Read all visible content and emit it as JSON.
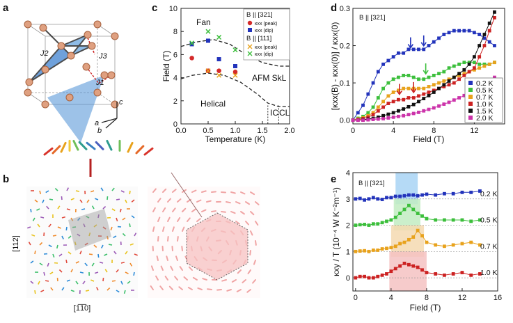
{
  "panels": {
    "a": {
      "label": "a",
      "bonds": [
        "J2",
        "J3",
        "J1"
      ],
      "axes": [
        "c",
        "a",
        "b"
      ]
    },
    "b": {
      "label": "b",
      "left_y_label": "[112]",
      "left_x_label": "[1̅1̅0]"
    },
    "c": {
      "label": "c"
    },
    "d": {
      "label": "d"
    },
    "e": {
      "label": "e"
    }
  },
  "chart_data": [
    {
      "id": "c",
      "type": "scatter",
      "title": "",
      "xlabel": "Temperature (K)",
      "ylabel": "Field (T)",
      "xlim": [
        0,
        2
      ],
      "ylim": [
        0,
        10
      ],
      "xticks": [
        0.0,
        0.5,
        1.0,
        1.5,
        2.0
      ],
      "xtick_labels": [
        "0.0",
        "0.5",
        "1.0",
        "1.5",
        "2.0"
      ],
      "yticks": [
        0,
        2,
        4,
        6,
        8,
        10
      ],
      "legend": {
        "header1": "B || [321]",
        "header2": "B || [111]",
        "entries": [
          "κxx (peak)",
          "κxx (dip)",
          "κxx (peak)",
          "κxx (dip)"
        ]
      },
      "regions": [
        "Fan",
        "AFM SkL",
        "Helical",
        "IC",
        "CL"
      ],
      "series": [
        {
          "name": "κxx (peak) B||[321]",
          "marker": "circle",
          "color": "#d42a2a",
          "points": [
            [
              0.2,
              5.7
            ],
            [
              0.5,
              4.6
            ],
            [
              0.7,
              4.6
            ],
            [
              1.0,
              4.5
            ]
          ]
        },
        {
          "name": "κxx (dip) B||[321]",
          "marker": "square",
          "color": "#2233bb",
          "points": [
            [
              0.2,
              6.9
            ],
            [
              0.5,
              7.2
            ],
            [
              0.7,
              5.6
            ],
            [
              1.0,
              5.0
            ]
          ]
        },
        {
          "name": "κxx (peak) B||[111]",
          "marker": "x",
          "color": "#e8a21c",
          "points": [
            [
              0.5,
              4.6
            ],
            [
              0.7,
              4.2
            ],
            [
              1.0,
              4.2
            ]
          ]
        },
        {
          "name": "κxx (dip) B||[111]",
          "marker": "x",
          "color": "#3cbf3c",
          "points": [
            [
              0.2,
              7.0
            ],
            [
              0.5,
              8.0
            ],
            [
              0.7,
              7.5
            ],
            [
              1.0,
              6.4
            ]
          ]
        }
      ],
      "boundaries": [
        {
          "name": "upper",
          "points": [
            [
              0.0,
              6.7
            ],
            [
              0.3,
              7.1
            ],
            [
              0.6,
              7.3
            ],
            [
              0.9,
              6.9
            ],
            [
              1.2,
              6.0
            ],
            [
              1.5,
              5.3
            ],
            [
              1.8,
              5.0
            ],
            [
              2.0,
              5.0
            ]
          ]
        },
        {
          "name": "lower",
          "points": [
            [
              0.0,
              3.9
            ],
            [
              0.2,
              4.2
            ],
            [
              0.5,
              4.4
            ],
            [
              0.8,
              4.2
            ],
            [
              1.1,
              3.6
            ],
            [
              1.4,
              2.6
            ],
            [
              1.6,
              1.8
            ],
            [
              1.8,
              1.5
            ],
            [
              2.0,
              1.5
            ]
          ]
        }
      ],
      "vertical_boundaries": [
        1.6,
        1.8
      ]
    },
    {
      "id": "d",
      "type": "line",
      "title": "B || [321]",
      "xlabel": "Field (T)",
      "ylabel": "[κxx(B) - κxx(0)] / κxx(0)",
      "xlim": [
        0,
        15
      ],
      "ylim": [
        -0.01,
        0.3
      ],
      "xticks": [
        0,
        4,
        8,
        12
      ],
      "yticks": [
        0.0,
        0.1,
        0.2,
        0.3
      ],
      "ytick_labels": [
        "0.0",
        "0.1",
        "0.2",
        "0.3"
      ],
      "series": [
        {
          "name": "0.2 K",
          "color": "#2233bb",
          "x": [
            0,
            0.5,
            1,
            1.5,
            2,
            2.5,
            3,
            3.5,
            4,
            4.5,
            5,
            5.5,
            6,
            6.5,
            7,
            7.5,
            8,
            8.5,
            9,
            9.5,
            10,
            10.5,
            11,
            11.5,
            12,
            12.5,
            13,
            13.5,
            14
          ],
          "values": [
            0.0,
            0.02,
            0.04,
            0.07,
            0.1,
            0.13,
            0.15,
            0.16,
            0.17,
            0.18,
            0.18,
            0.19,
            0.19,
            0.19,
            0.19,
            0.2,
            0.21,
            0.22,
            0.23,
            0.235,
            0.24,
            0.24,
            0.24,
            0.24,
            0.235,
            0.23,
            0.22,
            0.21,
            0.2
          ]
        },
        {
          "name": "0.5 K",
          "color": "#3cbf3c",
          "x": [
            0,
            0.5,
            1,
            1.5,
            2,
            2.5,
            3,
            3.5,
            4,
            4.5,
            5,
            5.5,
            6,
            6.5,
            7,
            7.5,
            8,
            8.5,
            9,
            9.5,
            10,
            10.5,
            11,
            11.5,
            12,
            12.5,
            13,
            13.5,
            14
          ],
          "values": [
            0.0,
            0.005,
            0.01,
            0.02,
            0.035,
            0.06,
            0.085,
            0.1,
            0.11,
            0.115,
            0.12,
            0.12,
            0.115,
            0.11,
            0.11,
            0.115,
            0.12,
            0.125,
            0.13,
            0.14,
            0.145,
            0.15,
            0.155,
            0.155,
            0.155,
            0.15,
            0.15,
            0.15,
            0.155
          ]
        },
        {
          "name": "0.7 K",
          "color": "#e8a21c",
          "x": [
            0,
            0.5,
            1,
            1.5,
            2,
            2.5,
            3,
            3.5,
            4,
            4.5,
            5,
            5.5,
            6,
            6.5,
            7,
            7.5,
            8,
            8.5,
            9,
            9.5,
            10,
            10.5,
            11,
            11.5,
            12,
            12.5,
            13,
            13.5,
            14
          ],
          "values": [
            0.0,
            0.003,
            0.006,
            0.012,
            0.02,
            0.035,
            0.05,
            0.065,
            0.075,
            0.08,
            0.085,
            0.085,
            0.085,
            0.085,
            0.085,
            0.09,
            0.095,
            0.1,
            0.105,
            0.11,
            0.115,
            0.12,
            0.125,
            0.13,
            0.135,
            0.14,
            0.145,
            0.15,
            0.155
          ]
        },
        {
          "name": "1.0 K",
          "color": "#cc2222",
          "x": [
            0,
            0.5,
            1,
            1.5,
            2,
            2.5,
            3,
            3.5,
            4,
            4.5,
            5,
            5.5,
            6,
            6.5,
            7,
            7.5,
            8,
            8.5,
            9,
            9.5,
            10,
            10.5,
            11,
            11.5,
            12,
            12.5,
            13,
            13.5,
            14
          ],
          "values": [
            0.0,
            0.002,
            0.004,
            0.008,
            0.015,
            0.025,
            0.035,
            0.045,
            0.05,
            0.055,
            0.055,
            0.06,
            0.06,
            0.065,
            0.07,
            0.075,
            0.08,
            0.085,
            0.09,
            0.095,
            0.1,
            0.11,
            0.12,
            0.13,
            0.14,
            0.17,
            0.2,
            0.24,
            0.275
          ]
        },
        {
          "name": "1.5 K",
          "color": "#111111",
          "x": [
            0,
            0.5,
            1,
            1.5,
            2,
            2.5,
            3,
            3.5,
            4,
            4.5,
            5,
            5.5,
            6,
            6.5,
            7,
            7.5,
            8,
            8.5,
            9,
            9.5,
            10,
            10.5,
            11,
            11.5,
            12,
            12.5,
            13,
            13.5,
            14
          ],
          "values": [
            0.0,
            0.0,
            0.001,
            0.003,
            0.005,
            0.008,
            0.012,
            0.016,
            0.02,
            0.025,
            0.03,
            0.036,
            0.042,
            0.05,
            0.058,
            0.066,
            0.075,
            0.085,
            0.095,
            0.105,
            0.115,
            0.125,
            0.135,
            0.15,
            0.17,
            0.2,
            0.23,
            0.26,
            0.29
          ]
        },
        {
          "name": "2.0 K",
          "color": "#cc33aa",
          "x": [
            0,
            0.5,
            1,
            1.5,
            2,
            2.5,
            3,
            3.5,
            4,
            4.5,
            5,
            5.5,
            6,
            6.5,
            7,
            7.5,
            8,
            8.5,
            9,
            9.5,
            10,
            10.5,
            11,
            11.5,
            12,
            12.5,
            13,
            13.5,
            14
          ],
          "values": [
            0.0,
            0.0,
            0.0,
            0.001,
            0.002,
            0.003,
            0.004,
            0.006,
            0.008,
            0.01,
            0.012,
            0.015,
            0.018,
            0.021,
            0.025,
            0.029,
            0.033,
            0.038,
            0.043,
            0.048,
            0.054,
            0.06,
            0.066,
            0.073,
            0.08,
            0.088,
            0.096,
            0.105,
            0.115
          ]
        }
      ],
      "arrows": [
        {
          "x": 5.7,
          "y": 0.185,
          "color": "#2233bb"
        },
        {
          "x": 7.0,
          "y": 0.19,
          "color": "#2233bb"
        },
        {
          "x": 7.2,
          "y": 0.115,
          "color": "#3cbf3c"
        },
        {
          "x": 4.6,
          "y": 0.06,
          "color": "#cc2222"
        },
        {
          "x": 6.0,
          "y": 0.065,
          "color": "#cc2222"
        }
      ]
    },
    {
      "id": "e",
      "type": "line",
      "title": "B || [321]",
      "xlabel": "Field (T)",
      "ylabel": "κxy / T (10⁻⁴ W K⁻²m⁻¹)",
      "xlim": [
        -0.3,
        16
      ],
      "ylim": [
        -0.5,
        4
      ],
      "xticks": [
        0,
        4,
        8,
        12,
        16
      ],
      "yticks": [
        0,
        1,
        2,
        3,
        4
      ],
      "shaded_bands": [
        {
          "from": 4.5,
          "to": 7.0,
          "color": "#a8d4f5"
        },
        {
          "from": 4.3,
          "to": 7.3,
          "color": "#c2ecc2"
        },
        {
          "from": 4.0,
          "to": 7.7,
          "color": "#f5d9b0"
        },
        {
          "from": 3.8,
          "to": 8.0,
          "color": "#f5c2c2"
        }
      ],
      "series": [
        {
          "name": "0.2 K",
          "color": "#2233bb",
          "offset": 3.0,
          "x": [
            0,
            0.5,
            1,
            1.5,
            2,
            2.5,
            3,
            3.5,
            4,
            4.5,
            5,
            5.5,
            6,
            6.5,
            7,
            7.5,
            8,
            9,
            10,
            11,
            12,
            13,
            14
          ],
          "values": [
            3.0,
            3.02,
            2.96,
            3.0,
            3.05,
            3.0,
            2.98,
            3.05,
            3.05,
            3.1,
            3.1,
            3.12,
            3.15,
            3.15,
            3.12,
            3.15,
            3.18,
            3.15,
            3.2,
            3.2,
            3.25,
            3.25,
            3.3
          ]
        },
        {
          "name": "0.5 K",
          "color": "#3cbf3c",
          "offset": 2.0,
          "x": [
            0,
            0.5,
            1,
            1.5,
            2,
            2.5,
            3,
            3.5,
            4,
            4.5,
            5,
            5.5,
            6,
            6.5,
            7,
            7.5,
            8,
            9,
            10,
            11,
            12,
            13,
            14
          ],
          "values": [
            2.0,
            2.02,
            2.03,
            2.0,
            2.05,
            2.05,
            2.1,
            2.15,
            2.2,
            2.3,
            2.45,
            2.6,
            2.75,
            2.6,
            2.45,
            2.35,
            2.25,
            2.2,
            2.2,
            2.2,
            2.2,
            2.15,
            2.2
          ]
        },
        {
          "name": "0.7 K",
          "color": "#e8a21c",
          "offset": 1.0,
          "x": [
            0,
            0.5,
            1,
            1.5,
            2,
            2.5,
            3,
            3.5,
            4,
            4.5,
            5,
            5.5,
            6,
            6.5,
            7,
            7.5,
            8,
            9,
            10,
            11,
            12,
            13,
            14
          ],
          "values": [
            1.0,
            1.02,
            1.03,
            1.0,
            1.05,
            1.05,
            1.1,
            1.12,
            1.15,
            1.2,
            1.3,
            1.35,
            1.45,
            1.55,
            1.8,
            1.6,
            1.35,
            1.25,
            1.2,
            1.25,
            1.3,
            1.35,
            1.25
          ]
        },
        {
          "name": "1.0 K",
          "color": "#cc2222",
          "offset": 0.0,
          "x": [
            0,
            0.5,
            1,
            1.5,
            2,
            2.5,
            3,
            3.5,
            4,
            4.5,
            5,
            5.5,
            6,
            6.5,
            7,
            7.5,
            8,
            9,
            10,
            11,
            12,
            13,
            14
          ],
          "values": [
            0.0,
            0.05,
            0.05,
            0.0,
            0.0,
            0.05,
            0.1,
            0.15,
            0.25,
            0.35,
            0.45,
            0.55,
            0.5,
            0.45,
            0.4,
            0.3,
            0.2,
            0.15,
            0.1,
            0.15,
            0.2,
            0.1,
            0.15
          ]
        }
      ],
      "temperature_labels": [
        "0.2 K",
        "0.5 K",
        "0.7 K",
        "1.0 K"
      ]
    }
  ]
}
